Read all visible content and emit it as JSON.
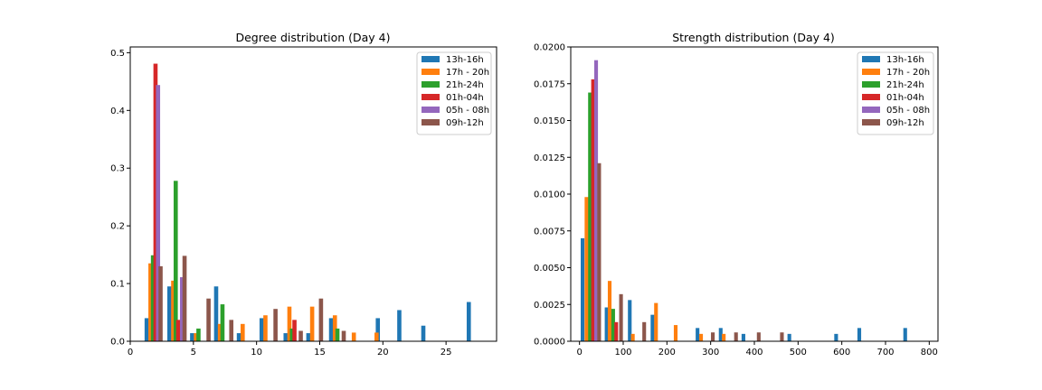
{
  "colors": {
    "13h-16h": "#1f77b4",
    "17h - 20h": "#ff7f0e",
    "21h-24h": "#2ca02c",
    "01h-04h": "#d62728",
    "05h - 08h": "#9467bd",
    "09h-12h": "#8c564b"
  },
  "chart_data": [
    {
      "type": "bar",
      "title": "Degree distribution (Day 4)",
      "xlabel": "",
      "ylabel": "",
      "xlim": [
        0,
        29
      ],
      "ylim": [
        0,
        0.51
      ],
      "xticks": [
        0,
        5,
        10,
        15,
        20,
        25
      ],
      "yticks": [
        0.0,
        0.1,
        0.2,
        0.3,
        0.4,
        0.5
      ],
      "xtick_labels": [
        "0",
        "5",
        "10",
        "15",
        "20",
        "25"
      ],
      "ytick_labels": [
        "0.0",
        "0.1",
        "0.2",
        "0.3",
        "0.4",
        "0.5"
      ],
      "legend_position": "top-right",
      "bar_width": 0.33,
      "series": [
        {
          "name": "13h-16h",
          "x": [
            1.3,
            3.1,
            4.9,
            6.8,
            8.6,
            10.4,
            12.3,
            14.1,
            15.9,
            19.6,
            21.3,
            23.2,
            26.8
          ],
          "values": [
            0.04,
            0.095,
            0.014,
            0.095,
            0.014,
            0.04,
            0.014,
            0.014,
            0.04,
            0.04,
            0.054,
            0.027,
            0.068
          ]
        },
        {
          "name": "17h - 20h",
          "x": [
            1.6,
            3.4,
            5.2,
            7.1,
            8.9,
            10.7,
            12.6,
            14.4,
            16.2,
            17.7,
            19.5
          ],
          "values": [
            0.135,
            0.105,
            0.014,
            0.03,
            0.03,
            0.045,
            0.06,
            0.06,
            0.045,
            0.015,
            0.015
          ]
        },
        {
          "name": "21h-24h",
          "x": [
            1.8,
            3.6,
            5.4,
            7.3,
            12.8,
            16.4
          ],
          "values": [
            0.149,
            0.278,
            0.022,
            0.064,
            0.022,
            0.022
          ]
        },
        {
          "name": "01h-04h",
          "x": [
            2.0,
            3.8,
            13.0
          ],
          "values": [
            0.481,
            0.037,
            0.037
          ]
        },
        {
          "name": "05h - 08h",
          "x": [
            2.2,
            4.1
          ],
          "values": [
            0.444,
            0.111
          ]
        },
        {
          "name": "09h-12h",
          "x": [
            2.4,
            4.3,
            6.2,
            8.0,
            11.5,
            13.5,
            15.1,
            16.9
          ],
          "values": [
            0.13,
            0.148,
            0.074,
            0.037,
            0.056,
            0.018,
            0.074,
            0.018
          ]
        }
      ]
    },
    {
      "type": "bar",
      "title": "Strength distribution (Day 4)",
      "xlabel": "",
      "ylabel": "",
      "xlim": [
        -20,
        820
      ],
      "ylim": [
        0,
        0.02
      ],
      "xticks": [
        0,
        100,
        200,
        300,
        400,
        500,
        600,
        700,
        800
      ],
      "yticks": [
        0.0,
        0.0025,
        0.005,
        0.0075,
        0.01,
        0.0125,
        0.015,
        0.0175,
        0.02
      ],
      "xtick_labels": [
        "0",
        "100",
        "200",
        "300",
        "400",
        "500",
        "600",
        "700",
        "800"
      ],
      "ytick_labels": [
        "0.0000",
        "0.0025",
        "0.0050",
        "0.0075",
        "0.0100",
        "0.0125",
        "0.0150",
        "0.0175",
        "0.0200"
      ],
      "legend_position": "top-right",
      "bar_width": 8.5,
      "series": [
        {
          "name": "13h-16h",
          "x": [
            7,
            62,
            115,
            167,
            270,
            323,
            375,
            480,
            587,
            640,
            745
          ],
          "values": [
            0.007,
            0.0023,
            0.0028,
            0.0018,
            0.0009,
            0.0009,
            0.0005,
            0.0005,
            0.0005,
            0.0009,
            0.0009
          ]
        },
        {
          "name": "17h - 20h",
          "x": [
            16,
            69,
            122,
            175,
            220,
            278,
            330
          ],
          "values": [
            0.0098,
            0.0041,
            0.0005,
            0.0026,
            0.0011,
            0.0005,
            0.0005
          ]
        },
        {
          "name": "21h-24h",
          "x": [
            24,
            77
          ],
          "values": [
            0.0169,
            0.0022
          ]
        },
        {
          "name": "01h-04h",
          "x": [
            31,
            84
          ],
          "values": [
            0.0178,
            0.0013
          ]
        },
        {
          "name": "05h - 08h",
          "x": [
            38
          ],
          "values": [
            0.0191
          ]
        },
        {
          "name": "09h-12h",
          "x": [
            45,
            95,
            148,
            305,
            358,
            410,
            463
          ],
          "values": [
            0.0121,
            0.0032,
            0.0013,
            0.0006,
            0.0006,
            0.0006,
            0.0006
          ]
        }
      ]
    }
  ]
}
